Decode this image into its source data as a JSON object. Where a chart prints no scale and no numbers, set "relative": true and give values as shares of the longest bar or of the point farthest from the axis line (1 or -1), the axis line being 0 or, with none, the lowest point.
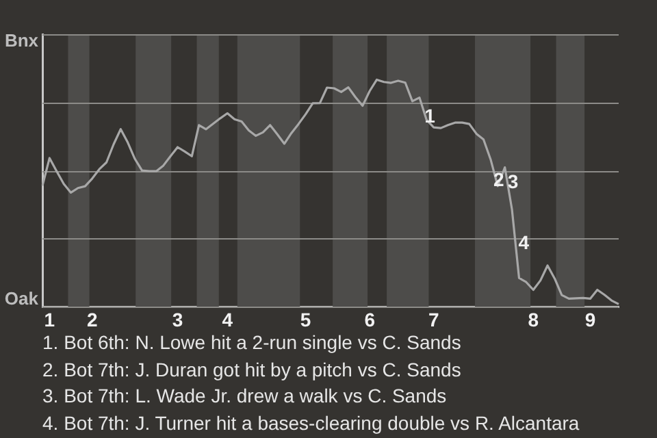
{
  "chart_data": {
    "type": "line",
    "relative": true,
    "categories": [
      null,
      "1",
      null,
      null,
      null,
      null,
      null,
      "2",
      null,
      null,
      null,
      null,
      null,
      null,
      null,
      null,
      null,
      null,
      null,
      "3",
      null,
      null,
      null,
      null,
      null,
      null,
      "4",
      null,
      null,
      null,
      null,
      null,
      null,
      null,
      null,
      null,
      null,
      "5",
      null,
      null,
      null,
      null,
      null,
      null,
      null,
      null,
      "6",
      null,
      null,
      null,
      null,
      null,
      null,
      null,
      null,
      "7",
      null,
      null,
      null,
      null,
      null,
      null,
      null,
      null,
      null,
      null,
      null,
      null,
      null,
      "8",
      null,
      null,
      null,
      null,
      null,
      null,
      null,
      "9",
      null,
      null,
      null,
      null
    ],
    "series": [
      {
        "color": "#a8a8a8",
        "values": [
          0.533,
          0.655,
          0.597,
          0.541,
          0.503,
          0.523,
          0.531,
          0.565,
          0.606,
          0.636,
          0.715,
          0.782,
          0.723,
          0.651,
          0.6,
          0.597,
          0.597,
          0.622,
          0.663,
          0.703,
          0.684,
          0.663,
          0.8,
          0.782,
          0.806,
          0.83,
          0.852,
          0.826,
          0.816,
          0.777,
          0.753,
          0.768,
          0.8,
          0.76,
          0.718,
          0.765,
          0.805,
          0.848,
          0.896,
          0.897,
          0.965,
          0.962,
          0.946,
          0.966,
          0.923,
          0.885,
          0.95,
          1,
          0.99,
          0.986,
          0.995,
          0.987,
          0.905,
          0.921,
          0.823,
          0.79,
          0.787,
          0.8,
          0.811,
          0.811,
          0.805,
          0.762,
          0.737,
          0.649,
          0.532,
          0.614,
          0.429,
          0.127,
          0.109,
          0.075,
          0.116,
          0.182,
          0.125,
          0.052,
          0.036,
          0.038,
          0.039,
          0.036,
          0.075,
          0.053,
          0.028,
          0.012
        ]
      }
    ],
    "grid": "y",
    "legend": false,
    "marker": "none",
    "line_style": "solid",
    "annotations": [
      "Bnx",
      "Oak",
      "1",
      "2",
      "3",
      "4",
      "1. Bot 6th: N. Lowe hit a 2-run single vs C. Sands",
      "2. Bot 7th: J. Duran got hit by a pitch vs C. Sands",
      "3. Bot 7th: L. Wade Jr. drew a walk vs C. Sands",
      "4. Bot 7th: J. Turner hit a bases-clearing double vs R. Alcantara"
    ]
  }
}
